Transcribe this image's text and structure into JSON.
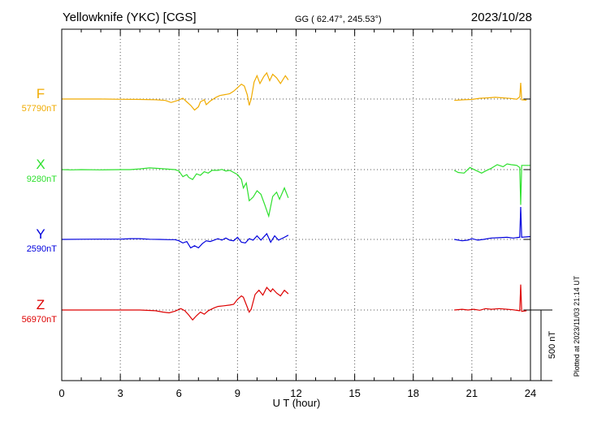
{
  "header": {
    "station": "Yellowknife (YKC)  [CGS]",
    "coords": "GG ( 62.47°, 245.53°)",
    "date": "2023/10/28"
  },
  "footer": {
    "plotted_at": "Plotted at 2023/11/03 21:14 UT"
  },
  "scale": {
    "label": "500 nT",
    "value_nT": 500
  },
  "chart_data": {
    "type": "line",
    "xlabel": "U T (hour)",
    "ylabel": "",
    "xlim": [
      0,
      24
    ],
    "xticks": [
      0,
      3,
      6,
      9,
      12,
      15,
      18,
      21,
      24
    ],
    "grid": true,
    "series": [
      {
        "name": "F",
        "baseline_label": "57790nT",
        "baseline_nT": 57790,
        "color": "#f0ab00",
        "points": [
          [
            0,
            0
          ],
          [
            0.5,
            0
          ],
          [
            1,
            0
          ],
          [
            2,
            0
          ],
          [
            3,
            -2
          ],
          [
            4,
            -3
          ],
          [
            4.8,
            -5
          ],
          [
            5.3,
            -10
          ],
          [
            5.6,
            -25
          ],
          [
            5.9,
            -12
          ],
          [
            6.2,
            5
          ],
          [
            6.4,
            -20
          ],
          [
            6.6,
            -45
          ],
          [
            6.8,
            -78
          ],
          [
            7,
            -55
          ],
          [
            7.1,
            -20
          ],
          [
            7.3,
            -5
          ],
          [
            7.4,
            -40
          ],
          [
            7.6,
            -15
          ],
          [
            7.9,
            12
          ],
          [
            8.1,
            25
          ],
          [
            8.4,
            32
          ],
          [
            8.6,
            38
          ],
          [
            8.8,
            55
          ],
          [
            9,
            80
          ],
          [
            9.2,
            105
          ],
          [
            9.35,
            92
          ],
          [
            9.5,
            30
          ],
          [
            9.6,
            -45
          ],
          [
            9.7,
            0
          ],
          [
            9.85,
            120
          ],
          [
            10,
            165
          ],
          [
            10.15,
            110
          ],
          [
            10.35,
            160
          ],
          [
            10.5,
            185
          ],
          [
            10.65,
            130
          ],
          [
            10.8,
            175
          ],
          [
            11,
            150
          ],
          [
            11.2,
            110
          ],
          [
            11.45,
            165
          ],
          [
            11.6,
            135
          ]
        ],
        "points2": [
          [
            20.1,
            -10
          ],
          [
            20.6,
            -5
          ],
          [
            21,
            -3
          ],
          [
            21.4,
            5
          ],
          [
            21.8,
            8
          ],
          [
            22.2,
            12
          ],
          [
            22.6,
            8
          ],
          [
            23,
            4
          ],
          [
            23.3,
            -2
          ],
          [
            23.45,
            15
          ],
          [
            23.5,
            115
          ],
          [
            23.55,
            -5
          ],
          [
            23.8,
            -8
          ]
        ]
      },
      {
        "name": "X",
        "baseline_label": "9280nT",
        "baseline_nT": 9280,
        "color": "#2ee02e",
        "points": [
          [
            0,
            0
          ],
          [
            0.5,
            -2
          ],
          [
            1,
            0
          ],
          [
            2,
            -2
          ],
          [
            3,
            0
          ],
          [
            3.5,
            0
          ],
          [
            4,
            5
          ],
          [
            4.5,
            12
          ],
          [
            5,
            8
          ],
          [
            5.5,
            3
          ],
          [
            5.8,
            0
          ],
          [
            6,
            -10
          ],
          [
            6.2,
            -50
          ],
          [
            6.4,
            -35
          ],
          [
            6.5,
            -55
          ],
          [
            6.7,
            -70
          ],
          [
            6.9,
            -30
          ],
          [
            7.1,
            -40
          ],
          [
            7.3,
            -15
          ],
          [
            7.5,
            -25
          ],
          [
            7.7,
            -5
          ],
          [
            8,
            -5
          ],
          [
            8.2,
            2
          ],
          [
            8.4,
            -10
          ],
          [
            8.6,
            -5
          ],
          [
            8.8,
            -20
          ],
          [
            9,
            -35
          ],
          [
            9.2,
            -70
          ],
          [
            9.3,
            -130
          ],
          [
            9.45,
            -95
          ],
          [
            9.6,
            -220
          ],
          [
            9.8,
            -195
          ],
          [
            10,
            -150
          ],
          [
            10.2,
            -175
          ],
          [
            10.4,
            -250
          ],
          [
            10.6,
            -330
          ],
          [
            10.8,
            -190
          ],
          [
            11,
            -160
          ],
          [
            11.15,
            -210
          ],
          [
            11.4,
            -130
          ],
          [
            11.6,
            -200
          ]
        ],
        "points2": [
          [
            20.1,
            -5
          ],
          [
            20.3,
            -20
          ],
          [
            20.6,
            -25
          ],
          [
            20.9,
            15
          ],
          [
            21.2,
            -5
          ],
          [
            21.5,
            -25
          ],
          [
            21.7,
            -10
          ],
          [
            22,
            10
          ],
          [
            22.3,
            35
          ],
          [
            22.6,
            20
          ],
          [
            22.8,
            40
          ],
          [
            23,
            35
          ],
          [
            23.3,
            30
          ],
          [
            23.45,
            15
          ],
          [
            23.5,
            -250
          ],
          [
            23.55,
            30
          ],
          [
            24,
            30
          ]
        ]
      },
      {
        "name": "Y",
        "baseline_label": "2590nT",
        "baseline_nT": 2590,
        "color": "#0000dd",
        "points": [
          [
            0,
            0
          ],
          [
            1,
            1
          ],
          [
            2,
            2
          ],
          [
            3,
            2
          ],
          [
            3.5,
            5
          ],
          [
            4,
            5
          ],
          [
            4.5,
            1
          ],
          [
            5,
            0
          ],
          [
            5.5,
            -2
          ],
          [
            5.8,
            -2
          ],
          [
            6,
            -10
          ],
          [
            6.2,
            -25
          ],
          [
            6.4,
            -15
          ],
          [
            6.6,
            -60
          ],
          [
            6.8,
            -45
          ],
          [
            7,
            -60
          ],
          [
            7.2,
            -30
          ],
          [
            7.4,
            -10
          ],
          [
            7.6,
            -15
          ],
          [
            7.8,
            -5
          ],
          [
            8,
            5
          ],
          [
            8.2,
            -5
          ],
          [
            8.4,
            10
          ],
          [
            8.6,
            -5
          ],
          [
            8.8,
            -10
          ],
          [
            9,
            15
          ],
          [
            9.2,
            -20
          ],
          [
            9.4,
            -25
          ],
          [
            9.6,
            5
          ],
          [
            9.8,
            -5
          ],
          [
            10,
            25
          ],
          [
            10.2,
            -5
          ],
          [
            10.5,
            40
          ],
          [
            10.7,
            -20
          ],
          [
            10.9,
            25
          ],
          [
            11.1,
            -5
          ],
          [
            11.4,
            15
          ],
          [
            11.6,
            30
          ]
        ],
        "points2": [
          [
            20.1,
            0
          ],
          [
            20.5,
            -10
          ],
          [
            20.8,
            -5
          ],
          [
            21,
            5
          ],
          [
            21.3,
            -5
          ],
          [
            21.6,
            0
          ],
          [
            22,
            10
          ],
          [
            22.4,
            12
          ],
          [
            22.8,
            15
          ],
          [
            23.1,
            10
          ],
          [
            23.45,
            15
          ],
          [
            23.5,
            230
          ],
          [
            23.55,
            15
          ],
          [
            24,
            20
          ]
        ]
      },
      {
        "name": "Z",
        "baseline_label": "56970nT",
        "baseline_nT": 56970,
        "color": "#dd0000",
        "points": [
          [
            0,
            0
          ],
          [
            1,
            0
          ],
          [
            2,
            0
          ],
          [
            3,
            0
          ],
          [
            4,
            0
          ],
          [
            4.8,
            -5
          ],
          [
            5.2,
            -15
          ],
          [
            5.5,
            -20
          ],
          [
            5.8,
            -8
          ],
          [
            6.1,
            10
          ],
          [
            6.3,
            -5
          ],
          [
            6.5,
            -35
          ],
          [
            6.7,
            -70
          ],
          [
            6.9,
            -40
          ],
          [
            7.1,
            -15
          ],
          [
            7.3,
            -30
          ],
          [
            7.5,
            -5
          ],
          [
            7.8,
            15
          ],
          [
            8,
            25
          ],
          [
            8.3,
            30
          ],
          [
            8.6,
            35
          ],
          [
            8.8,
            40
          ],
          [
            9,
            75
          ],
          [
            9.2,
            100
          ],
          [
            9.3,
            90
          ],
          [
            9.5,
            20
          ],
          [
            9.6,
            -15
          ],
          [
            9.7,
            5
          ],
          [
            9.9,
            110
          ],
          [
            10.1,
            140
          ],
          [
            10.3,
            105
          ],
          [
            10.5,
            160
          ],
          [
            10.7,
            130
          ],
          [
            10.8,
            150
          ],
          [
            11,
            120
          ],
          [
            11.2,
            100
          ],
          [
            11.4,
            140
          ],
          [
            11.6,
            115
          ]
        ],
        "points2": [
          [
            20.1,
            0
          ],
          [
            20.5,
            5
          ],
          [
            20.8,
            0
          ],
          [
            21.1,
            5
          ],
          [
            21.4,
            -2
          ],
          [
            21.7,
            10
          ],
          [
            22,
            5
          ],
          [
            22.4,
            10
          ],
          [
            22.8,
            5
          ],
          [
            23.1,
            2
          ],
          [
            23.45,
            -5
          ],
          [
            23.5,
            180
          ],
          [
            23.55,
            -10
          ],
          [
            23.8,
            -5
          ]
        ]
      }
    ]
  }
}
